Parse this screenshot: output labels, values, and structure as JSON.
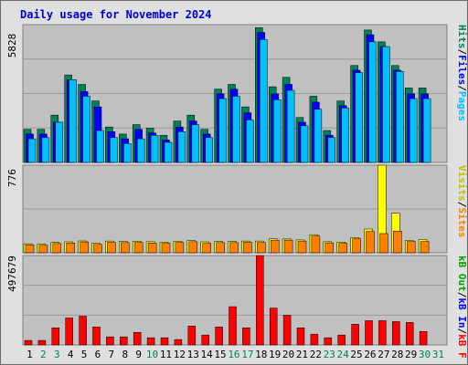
{
  "title": "Daily usage for November 2024",
  "colors": {
    "background": "#e0e0e0",
    "panel": "#c0c0c0",
    "hits": "#00805c",
    "files": "#0000ff",
    "pages": "#00c0ff",
    "visits": "#ffff00",
    "sites": "#ff8000",
    "kbytes": "#ff0000",
    "in": "#0000ff",
    "out": "#00a000",
    "weekday": "#000000",
    "weekend": "#00805c"
  },
  "y_labels": {
    "top": "5828",
    "middle": "776",
    "bottom": "497679"
  },
  "legend_top": {
    "pages": "Pages",
    "files": "Files",
    "hits": "Hits",
    "sep1": "/",
    "sep2": "/"
  },
  "legend_middle": {
    "sites": "Sites",
    "visits": "Visits",
    "sep": "/"
  },
  "legend_bottom": {
    "kbf": "kB F",
    "kbin": "kB In",
    "kbout": "kB Out",
    "sep1": "/",
    "sep2": "/"
  },
  "chart_data": [
    {
      "type": "bar",
      "panel": "hits-files-pages",
      "ylim": [
        0,
        5828
      ],
      "categories": [
        "1",
        "2",
        "3",
        "4",
        "5",
        "6",
        "7",
        "8",
        "9",
        "10",
        "11",
        "12",
        "13",
        "14",
        "15",
        "16",
        "17",
        "18",
        "19",
        "20",
        "21",
        "22",
        "23",
        "24",
        "25",
        "26",
        "27",
        "28",
        "29",
        "30",
        "31"
      ],
      "weekend": [
        false,
        true,
        true,
        false,
        false,
        false,
        false,
        false,
        false,
        true,
        false,
        false,
        false,
        false,
        false,
        true,
        true,
        false,
        false,
        false,
        false,
        false,
        true,
        true,
        false,
        false,
        false,
        false,
        false,
        true,
        true
      ],
      "series": [
        {
          "name": "Hits",
          "values": [
            1400,
            1400,
            2000,
            3700,
            3300,
            2600,
            1500,
            1200,
            1600,
            1450,
            1150,
            1750,
            2000,
            1400,
            3100,
            3300,
            2350,
            5700,
            3200,
            3600,
            1900,
            2800,
            1350,
            2600,
            4100,
            5600,
            5100,
            4100,
            3150,
            3150,
            null
          ]
        },
        {
          "name": "Files",
          "values": [
            1200,
            1200,
            1700,
            3500,
            3000,
            2350,
            1300,
            1000,
            1400,
            1250,
            950,
            1500,
            1750,
            1200,
            2900,
            3100,
            2100,
            5500,
            2900,
            3300,
            1700,
            2550,
            1150,
            2400,
            3900,
            5400,
            4900,
            3900,
            2900,
            2900,
            null
          ]
        },
        {
          "name": "Pages",
          "values": [
            1000,
            1050,
            1700,
            3500,
            2800,
            1350,
            1050,
            800,
            1000,
            1150,
            850,
            1300,
            1600,
            1050,
            2700,
            2800,
            1800,
            5200,
            2650,
            3050,
            1550,
            2250,
            1050,
            2300,
            3800,
            5100,
            4900,
            3850,
            2700,
            2700,
            null
          ]
        }
      ]
    },
    {
      "type": "bar",
      "panel": "visits-sites",
      "ylim": [
        0,
        776
      ],
      "categories": [
        "1",
        "2",
        "3",
        "4",
        "5",
        "6",
        "7",
        "8",
        "9",
        "10",
        "11",
        "12",
        "13",
        "14",
        "15",
        "16",
        "17",
        "18",
        "19",
        "20",
        "21",
        "22",
        "23",
        "24",
        "25",
        "26",
        "27",
        "28",
        "29",
        "30",
        "31"
      ],
      "series": [
        {
          "name": "Visits",
          "values": [
            80,
            78,
            92,
            97,
            105,
            85,
            104,
            100,
            102,
            98,
            94,
            102,
            108,
            97,
            100,
            100,
            104,
            104,
            123,
            122,
            114,
            160,
            98,
            95,
            135,
            210,
            776,
            350,
            110,
            118,
            null
          ]
        },
        {
          "name": "Sites",
          "values": [
            70,
            66,
            82,
            86,
            96,
            74,
            94,
            90,
            92,
            87,
            84,
            92,
            98,
            84,
            90,
            90,
            94,
            92,
            112,
            112,
            104,
            148,
            88,
            84,
            124,
            188,
            170,
            192,
            100,
            100,
            null
          ]
        }
      ]
    },
    {
      "type": "bar",
      "panel": "kbytes",
      "ylim": [
        0,
        497679
      ],
      "categories": [
        "1",
        "2",
        "3",
        "4",
        "5",
        "6",
        "7",
        "8",
        "9",
        "10",
        "11",
        "12",
        "13",
        "14",
        "15",
        "16",
        "17",
        "18",
        "19",
        "20",
        "21",
        "22",
        "23",
        "24",
        "25",
        "26",
        "27",
        "28",
        "29",
        "30",
        "31"
      ],
      "series": [
        {
          "name": "kB F",
          "values": [
            25000,
            25000,
            95000,
            150000,
            160000,
            100000,
            45000,
            45000,
            70000,
            40000,
            40000,
            30000,
            105000,
            55000,
            100000,
            213000,
            95000,
            497679,
            205000,
            165000,
            95000,
            60000,
            40000,
            55000,
            115000,
            135000,
            135000,
            130000,
            125000,
            75000,
            null
          ]
        }
      ]
    }
  ]
}
